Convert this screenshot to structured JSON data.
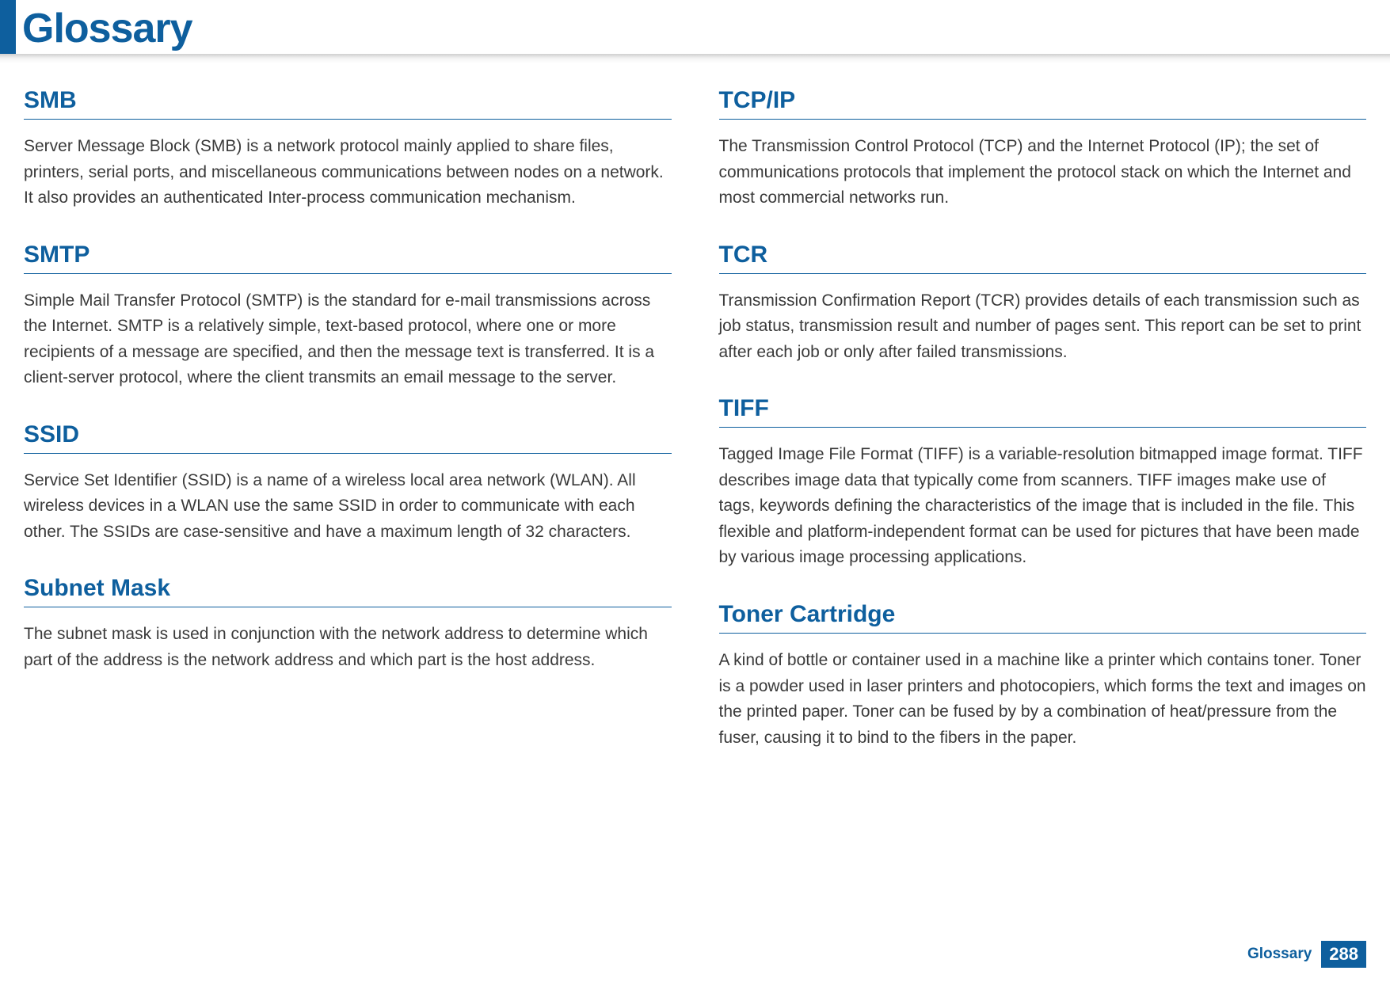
{
  "page_title": "Glossary",
  "footer_label": "Glossary",
  "page_number": "288",
  "left_column": [
    {
      "term": "SMB",
      "definition": "Server Message Block (SMB) is a network protocol mainly applied to share files, printers, serial ports, and miscellaneous communications between nodes on a network. It also provides an authenticated Inter-process communication mechanism."
    },
    {
      "term": "SMTP",
      "definition": "Simple Mail Transfer Protocol (SMTP) is the standard for e-mail transmissions across the Internet. SMTP is a relatively simple, text-based protocol, where one or more recipients of a message are specified, and then the message text is transferred. It is a client-server protocol, where the client transmits an email message to the server."
    },
    {
      "term": "SSID",
      "definition": "Service Set Identifier (SSID) is a name of a wireless local area network (WLAN). All wireless devices in a WLAN use the same SSID in order to communicate with each other. The SSIDs are case-sensitive and have a maximum length of 32 characters."
    },
    {
      "term": "Subnet Mask",
      "definition": "The subnet mask is used in conjunction with the network address to determine which part of the address is the network address and which part is the host address."
    }
  ],
  "right_column": [
    {
      "term": "TCP/IP",
      "definition": "The Transmission Control Protocol (TCP) and the Internet Protocol (IP); the set of communications protocols that implement the protocol stack on which the Internet and most commercial networks run."
    },
    {
      "term": "TCR",
      "definition": "Transmission Confirmation Report (TCR) provides details of each transmission such as job status, transmission result and number of pages sent. This report can be set to print after each job or only after failed transmissions."
    },
    {
      "term": "TIFF",
      "definition": "Tagged Image File Format (TIFF) is a variable-resolution bitmapped image format. TIFF describes image data that typically come from scanners. TIFF images make use of tags, keywords defining the characteristics of the image that is included in the file. This flexible and platform-independent format can be used for pictures that have been made by various image processing applications."
    },
    {
      "term": "Toner Cartridge",
      "definition": "A kind of bottle or container used in a machine like a printer which contains toner. Toner is a powder used in laser printers and photocopiers, which forms the text and images on the printed paper. Toner can be fused by by a combination of heat/pressure from the fuser, causing it to bind to the fibers in the paper."
    }
  ]
}
